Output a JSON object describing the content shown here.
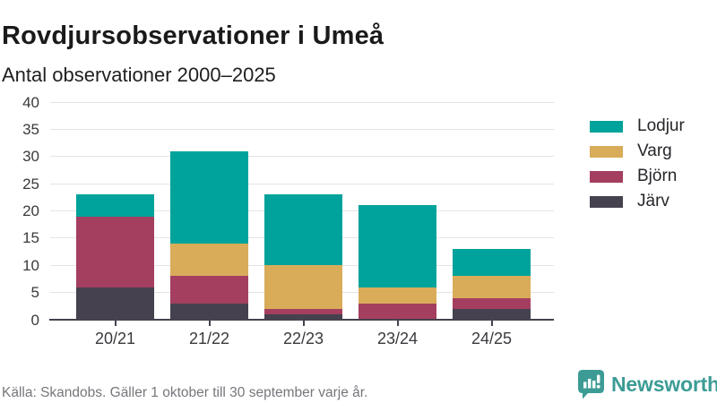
{
  "header": {
    "title": "Rovdjursobservationer i Umeå",
    "subtitle": "Antal observationer 2000–2025"
  },
  "chart_data": {
    "type": "bar",
    "stacked": true,
    "title": "Rovdjursobservationer i Umeå",
    "subtitle": "Antal observationer 2000–2025",
    "categories": [
      "20/21",
      "21/22",
      "22/23",
      "23/24",
      "24/25"
    ],
    "series": [
      {
        "name": "Lodjur",
        "color": "#00a39b",
        "values": [
          4,
          17,
          13,
          15,
          5
        ]
      },
      {
        "name": "Varg",
        "color": "#d9ac5a",
        "values": [
          0,
          6,
          8,
          3,
          4
        ]
      },
      {
        "name": "Björn",
        "color": "#a43f60",
        "values": [
          13,
          5,
          1,
          3,
          2
        ]
      },
      {
        "name": "Järv",
        "color": "#45414e",
        "values": [
          6,
          3,
          1,
          0,
          2
        ]
      }
    ],
    "ylim": [
      0,
      40
    ],
    "ytick_step": 5,
    "grid": true,
    "legend_position": "right"
  },
  "footer": {
    "source": "Källa: Skandobs. Gäller 1 oktober till 30 september varje år."
  },
  "branding": {
    "name": "Newsworthy",
    "color": "#3c9c95"
  },
  "colors": {
    "background": "#ffffff",
    "grid": "#e4e4e4",
    "axis": "#46424e",
    "tick_label": "#3a3a3e",
    "title": "#1a1a1a",
    "subtitle": "#1f1f1f",
    "footer_text": "#76767c"
  }
}
